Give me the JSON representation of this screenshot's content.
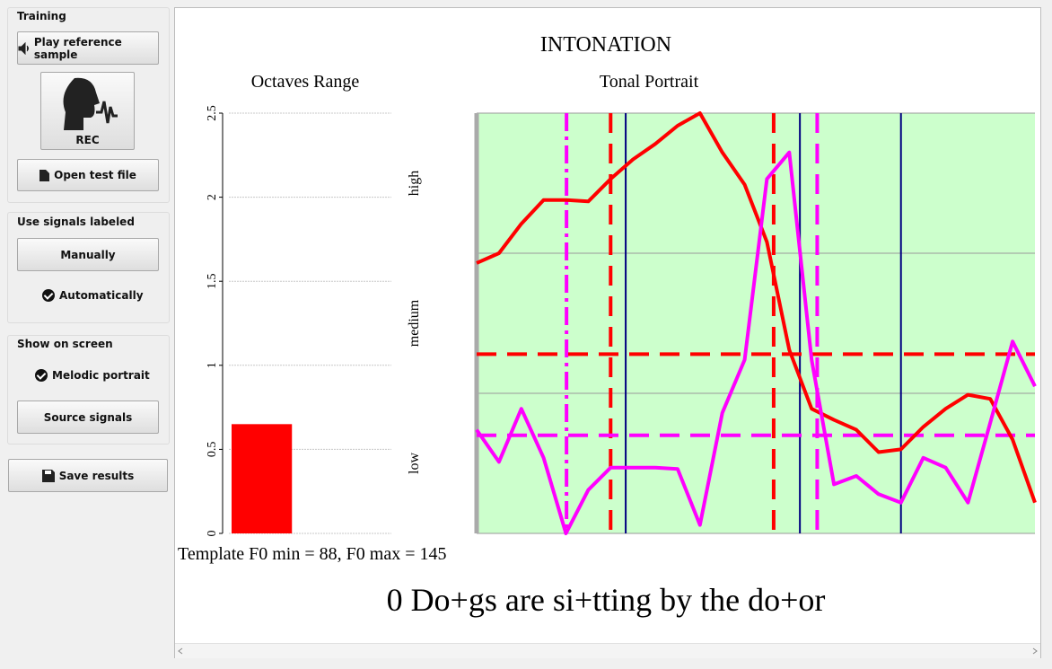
{
  "sidebar": {
    "training": {
      "title": "Training",
      "play": "Play reference sample",
      "rec": "REC",
      "open": "Open test file"
    },
    "signals": {
      "title": "Use signals labeled",
      "manual": "Manually",
      "auto": "Automatically"
    },
    "screen": {
      "title": "Show on screen",
      "melodic": "Melodic portrait",
      "source": "Source signals"
    },
    "save": "Save results"
  },
  "main": {
    "title": "INTONATION",
    "footer": "Template F0 min = 88, F0 max = 145",
    "sentence": "0 Do+gs are si+tting by the do+or"
  },
  "chart_data": [
    {
      "type": "bar",
      "title": "Octaves Range",
      "categories": [
        null
      ],
      "values": [
        0.65
      ],
      "color": "#ff0000",
      "ylim": [
        0,
        2.5
      ],
      "yticks": [
        0,
        0.5,
        1,
        1.5,
        2,
        2.5
      ],
      "grid": true
    },
    {
      "type": "line",
      "title": "Tonal Portrait",
      "y_band_labels": [
        "low",
        "medium",
        "high"
      ],
      "xlim": [
        0,
        100
      ],
      "ylim": [
        0,
        3
      ],
      "yticks": [
        1,
        2
      ],
      "grid": true,
      "background": "#ccffcc",
      "x": [
        0,
        4,
        8,
        12,
        16,
        20,
        24,
        28,
        32,
        36,
        40,
        44,
        48,
        52,
        56,
        60,
        64,
        68,
        72,
        76,
        80,
        84,
        88,
        92,
        96,
        100
      ],
      "series": [
        {
          "color": "#ff0000",
          "values": [
            1.93,
            2.0,
            2.21,
            2.38,
            2.38,
            2.37,
            2.53,
            2.67,
            2.78,
            2.91,
            3.0,
            2.72,
            2.49,
            2.08,
            1.31,
            0.89,
            0.81,
            0.74,
            0.58,
            0.6,
            0.76,
            0.89,
            0.99,
            0.96,
            0.67,
            0.22
          ]
        },
        {
          "color": "#ff00ff",
          "values": [
            0.74,
            0.51,
            0.89,
            0.54,
            0,
            0.31,
            0.47,
            0.47,
            0.47,
            0.46,
            0.06,
            0.86,
            1.24,
            2.53,
            2.72,
            1.24,
            0.35,
            0.41,
            0.28,
            0.22,
            0.54,
            0.47,
            0.22,
            0.79,
            1.37,
            1.05
          ]
        }
      ],
      "hlines": [
        {
          "y": 1.28,
          "color": "#ff0000",
          "style": "dashed"
        },
        {
          "y": 0.7,
          "color": "#ff00ff",
          "style": "dashed"
        }
      ],
      "vlines": [
        {
          "x": 16.1,
          "color": "#ff00ff",
          "style": "dashdot"
        },
        {
          "x": 24,
          "color": "#ff0000",
          "style": "dashed"
        },
        {
          "x": 26.7,
          "color": "#000080",
          "style": "solid"
        },
        {
          "x": 53.2,
          "color": "#ff0000",
          "style": "dashed"
        },
        {
          "x": 57.9,
          "color": "#000080",
          "style": "solid"
        },
        {
          "x": 61,
          "color": "#ff00ff",
          "style": "dashed"
        },
        {
          "x": 76,
          "color": "#000080",
          "style": "solid"
        }
      ]
    }
  ]
}
